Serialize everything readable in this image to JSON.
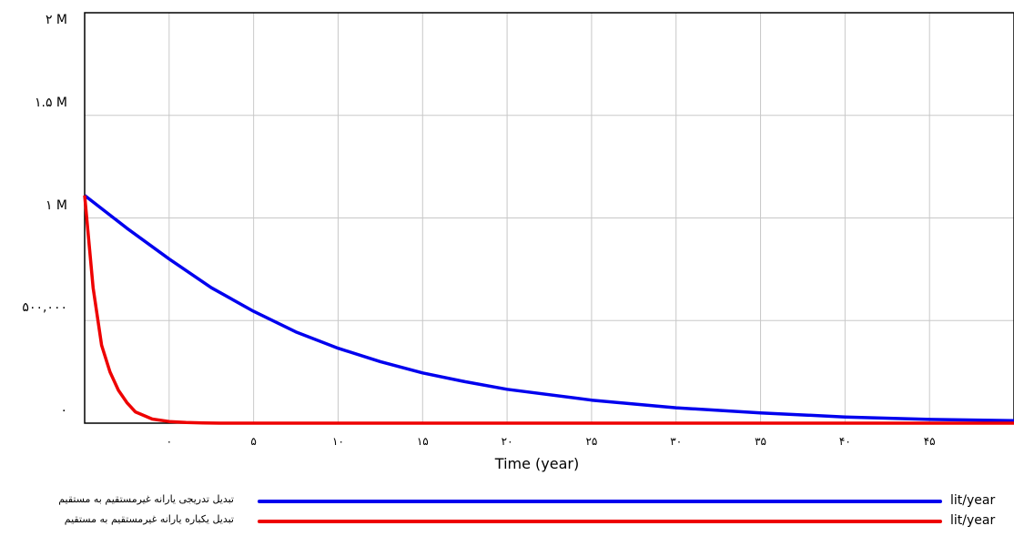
{
  "chart_data": {
    "type": "line",
    "xlabel": "Time (year)",
    "x_range": [
      -5,
      50
    ],
    "ylim": [
      0,
      2000000
    ],
    "grid": true,
    "legend_position": "bottom",
    "y_tick_labels": [
      {
        "value": 2000000,
        "label": "۲ M"
      },
      {
        "value": 1500000,
        "label": "۱.۵ M"
      },
      {
        "value": 1000000,
        "label": "۱ M"
      },
      {
        "value": 500000,
        "label": "۵۰۰,۰۰۰"
      },
      {
        "value": 0,
        "label": "۰"
      }
    ],
    "x_tick_labels": [
      {
        "value": 0,
        "label": "۰"
      },
      {
        "value": 5,
        "label": "۵"
      },
      {
        "value": 10,
        "label": "۱۰"
      },
      {
        "value": 15,
        "label": "۱۵"
      },
      {
        "value": 20,
        "label": "۲۰"
      },
      {
        "value": 25,
        "label": "۲۵"
      },
      {
        "value": 30,
        "label": "۳۰"
      },
      {
        "value": 35,
        "label": "۳۵"
      },
      {
        "value": 40,
        "label": "۴۰"
      },
      {
        "value": 45,
        "label": "۴۵"
      }
    ],
    "series": [
      {
        "name": "تبدیل تدریجی یارانه غیرمستقیم به مستقیم",
        "unit": "lit/year",
        "color": "#0000ee",
        "x": [
          -5,
          -2.5,
          0,
          2.5,
          5,
          7.5,
          10,
          12.5,
          15,
          17.5,
          20,
          25,
          30,
          35,
          40,
          45,
          50
        ],
        "values": [
          1110000,
          950000,
          800000,
          660000,
          545000,
          445000,
          365000,
          300000,
          245000,
          202000,
          165000,
          112000,
          75000,
          50000,
          30000,
          18000,
          12000
        ]
      },
      {
        "name": "تبدیل یکباره یارانه غیرمستقیم به مستقیم",
        "unit": "lit/year",
        "color": "#ee0000",
        "x": [
          -5,
          -4.5,
          -4,
          -3.5,
          -3,
          -2.5,
          -2,
          -1,
          0,
          1,
          2,
          3,
          5,
          10,
          20,
          30,
          40,
          50
        ],
        "values": [
          1110000,
          660000,
          380000,
          250000,
          160000,
          100000,
          55000,
          20000,
          8000,
          3000,
          1000,
          0,
          0,
          0,
          0,
          0,
          0,
          0
        ]
      }
    ]
  }
}
